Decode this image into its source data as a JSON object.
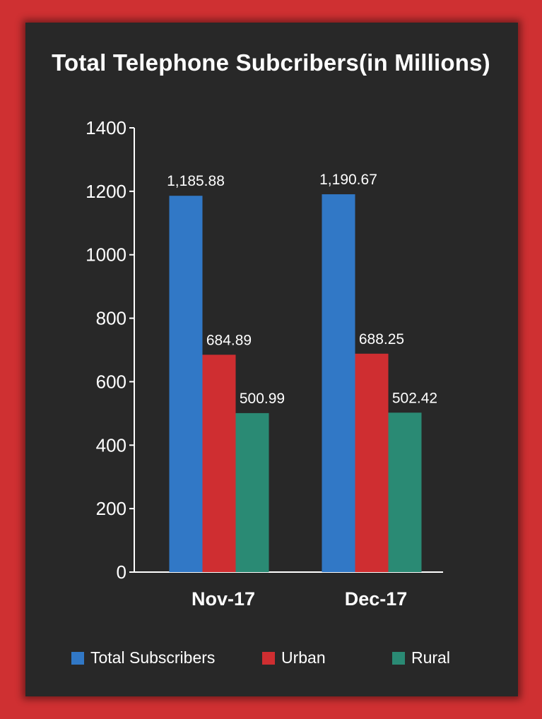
{
  "chart_data": {
    "type": "bar",
    "title": "Total Telephone Subcribers(in Millions)",
    "xlabel": "",
    "ylabel": "",
    "categories": [
      "Nov-17",
      "Dec-17"
    ],
    "ylim": [
      0,
      1400
    ],
    "yticks": [
      0,
      200,
      400,
      600,
      800,
      1000,
      1200,
      1400
    ],
    "grid": false,
    "legend_position": "bottom",
    "series": [
      {
        "name": "Total Subscribers",
        "color": "#3178c6",
        "values": [
          1185.88,
          1190.67
        ],
        "labels": [
          "1,185.88",
          "1,190.67"
        ]
      },
      {
        "name": "Urban",
        "color": "#cf2e31",
        "values": [
          684.89,
          688.25
        ],
        "labels": [
          "684.89",
          "688.25"
        ]
      },
      {
        "name": "Rural",
        "color": "#2a8a74",
        "values": [
          500.99,
          502.42
        ],
        "labels": [
          "500.99",
          "502.42"
        ]
      }
    ]
  },
  "colors": {
    "background": "#cf3032",
    "panel": "#282828",
    "text": "#ffffff"
  }
}
